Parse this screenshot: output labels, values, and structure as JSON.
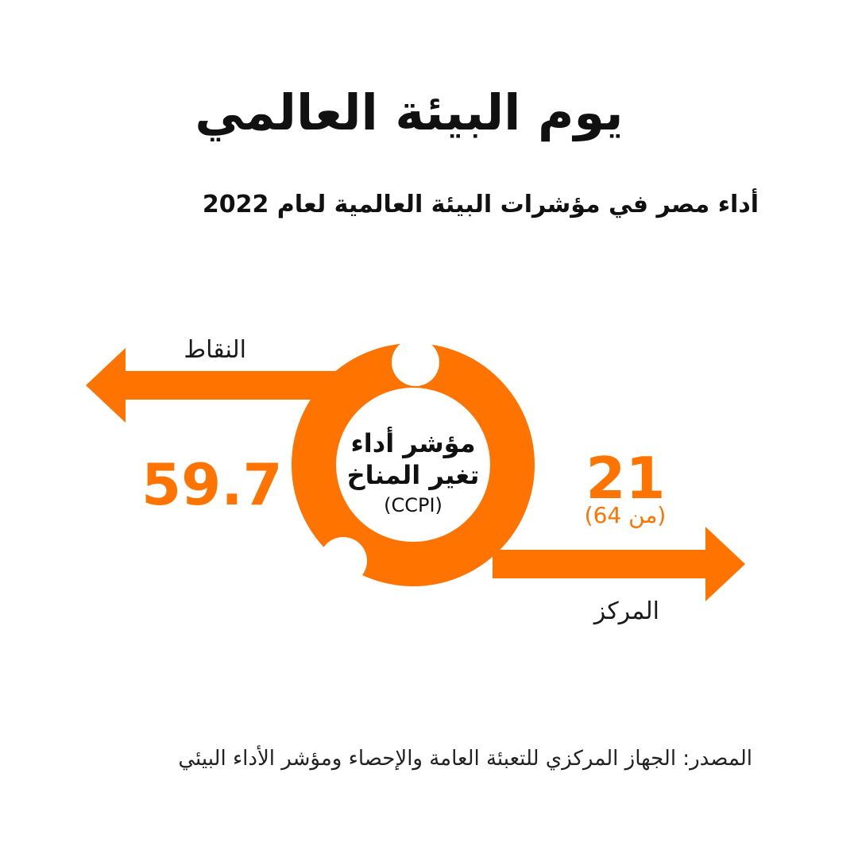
{
  "title": "يوم البيئة العالمي",
  "subtitle": "أداء مصر في مؤشرات البيئة العالمية لعام 2022",
  "colors": {
    "accent": "#FF7300",
    "text": "#111111",
    "background": "#FFFFFF"
  },
  "indicator": {
    "name_line1": "مؤشر أداء",
    "name_line2": "تغير المناخ",
    "abbreviation": "(CCPI)"
  },
  "points": {
    "label": "النقاط",
    "value": "59.7",
    "arrow_icon": "arrow-left-icon"
  },
  "rank": {
    "label": "المركز",
    "value": "21",
    "out_of": "(من 64)",
    "arrow_icon": "arrow-right-icon"
  },
  "source": "المصدر: الجهاز المركزي للتعبئة العامة والإحصاء ومؤشر الأداء البيئي"
}
